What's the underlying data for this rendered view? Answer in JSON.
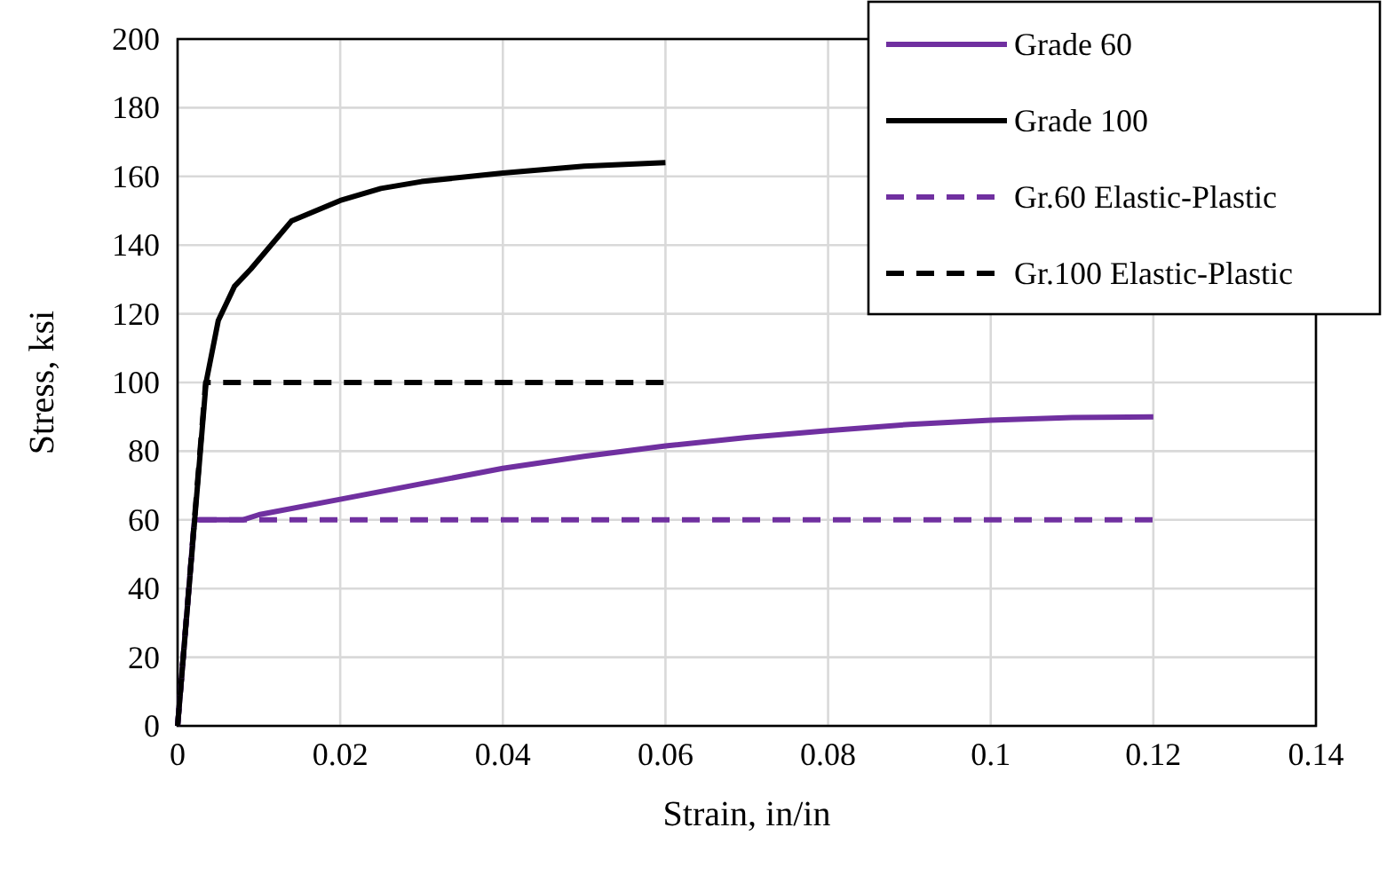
{
  "chart_data": {
    "type": "line",
    "xlabel": "Strain, in/in",
    "ylabel": "Stress, ksi",
    "xlim": [
      0,
      0.14
    ],
    "xticks": [
      0,
      0.02,
      0.04,
      0.06,
      0.08,
      0.1,
      0.12,
      0.14
    ],
    "ylim": [
      0,
      200
    ],
    "yticks": [
      0,
      20,
      40,
      60,
      80,
      100,
      120,
      140,
      160,
      180,
      200
    ],
    "grid": true,
    "legend": "top right",
    "marker": "none",
    "series": [
      {
        "name": "Grade 60",
        "color": "#7030a0",
        "line_style": "solid",
        "x": [
          0,
          0.00207,
          0.008,
          0.01,
          0.02,
          0.03,
          0.04,
          0.05,
          0.06,
          0.07,
          0.08,
          0.09,
          0.1,
          0.11,
          0.12
        ],
        "values": [
          0,
          60,
          60,
          61.5,
          66,
          70.5,
          75,
          78.5,
          81.5,
          84,
          86,
          87.8,
          89,
          89.8,
          90
        ]
      },
      {
        "name": "Grade 100",
        "color": "#000000",
        "line_style": "solid",
        "x": [
          0,
          0.0035,
          0.005,
          0.007,
          0.009,
          0.014,
          0.02,
          0.025,
          0.03,
          0.04,
          0.05,
          0.06
        ],
        "values": [
          0,
          100,
          118,
          128,
          133,
          147,
          153,
          156.5,
          158.5,
          161,
          163,
          164
        ]
      },
      {
        "name": "Gr.60 Elastic-Plastic",
        "color": "#7030a0",
        "line_style": "dashed",
        "x": [
          0,
          0.00207,
          0.12
        ],
        "values": [
          0,
          60,
          60
        ]
      },
      {
        "name": "Gr.100 Elastic-Plastic",
        "color": "#000000",
        "line_style": "dashed",
        "x": [
          0,
          0.00345,
          0.06
        ],
        "values": [
          0,
          100,
          100
        ]
      }
    ]
  }
}
